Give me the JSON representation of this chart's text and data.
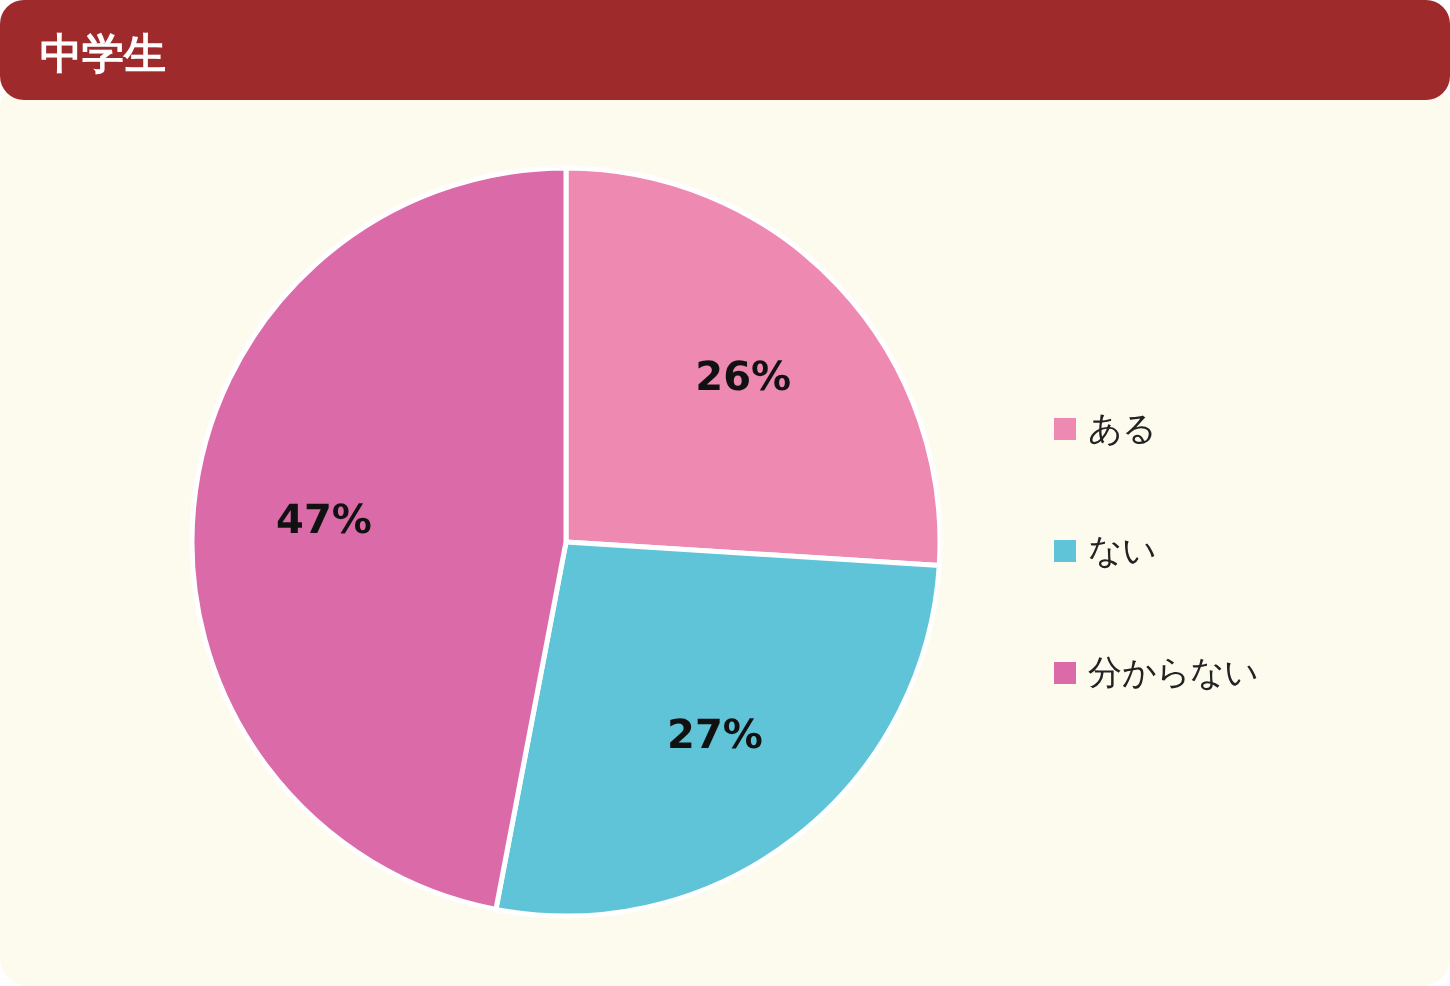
{
  "chart_data": {
    "type": "pie",
    "title": "中学生",
    "categories": [
      "ある",
      "ない",
      "分からない"
    ],
    "values": [
      26,
      27,
      47
    ],
    "colors": [
      "#ee89b1",
      "#5fc4d7",
      "#db6ba8"
    ],
    "value_labels": [
      "26%",
      "27%",
      "47%"
    ],
    "legend": "right"
  }
}
